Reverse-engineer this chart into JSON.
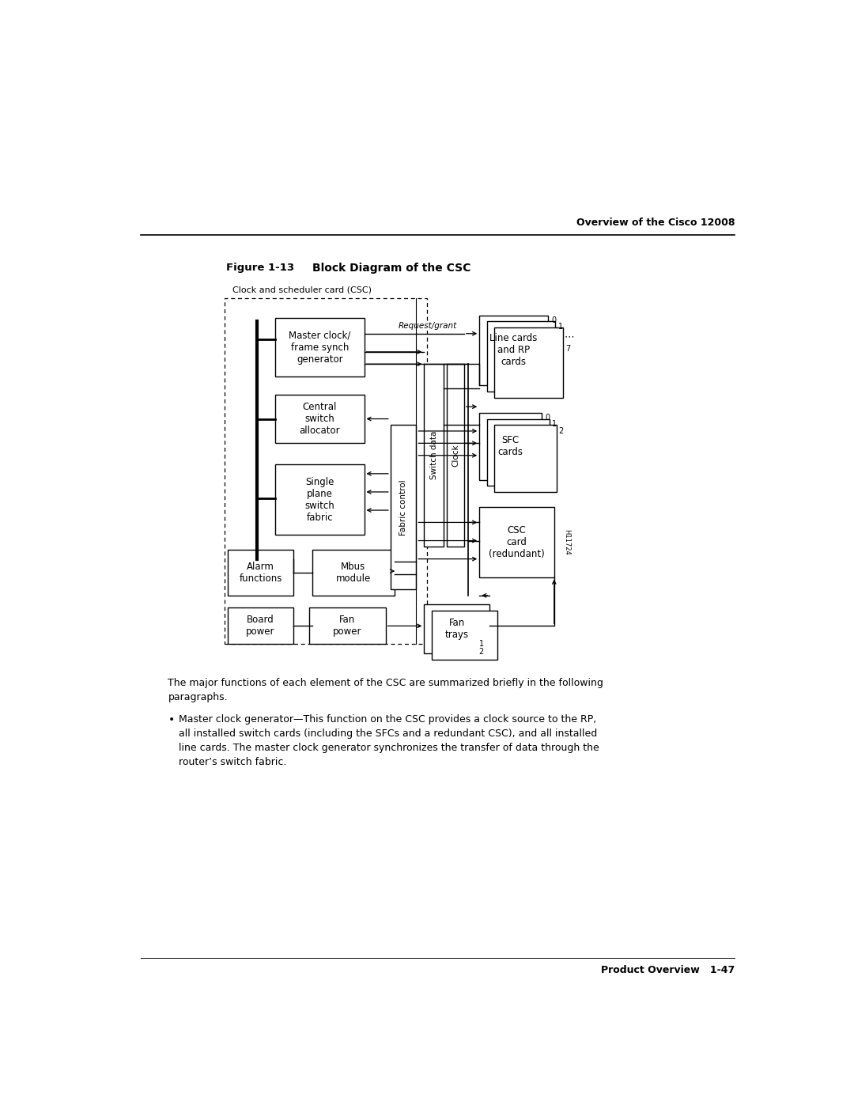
{
  "title_label": "Figure 1-13",
  "title_text": "Block Diagram of the CSC",
  "header_text": "Overview of the Cisco 12008",
  "csc_label": "Clock and scheduler card (CSC)",
  "body_text_1": "The major functions of each element of the CSC are summarized briefly in the following\nparagraphs.",
  "body_text_2": "Master clock generator—This function on the CSC provides a clock source to the RP,\nall installed switch cards (including the SFCs and a redundant CSC), and all installed\nline cards. The master clock generator synchronizes the transfer of data through the\nrouter’s switch fabric.",
  "footer_text": "Product Overview   1-47",
  "bg_color": "#ffffff",
  "box_color": "#ffffff",
  "box_border": "#000000",
  "text_color": "#000000"
}
